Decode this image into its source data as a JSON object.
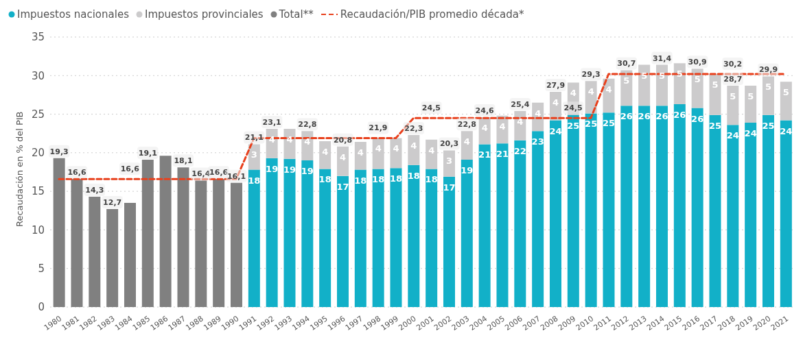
{
  "chart_data": {
    "type": "bar",
    "stacked": true,
    "ylabel": "Recaudación en % del PIB",
    "legend": "top left",
    "grid": "y",
    "ylim": [
      0,
      35
    ],
    "yticks": [
      0,
      5,
      10,
      15,
      20,
      25,
      30,
      35
    ],
    "categories": [
      "1980",
      "1981",
      "1982",
      "1983",
      "1984",
      "1985",
      "1986",
      "1987",
      "1988",
      "1989",
      "1990",
      "1991",
      "1992",
      "1993",
      "1994",
      "1995",
      "1996",
      "1997",
      "1998",
      "1999",
      "2000",
      "2001",
      "2002",
      "2003",
      "2004",
      "2005",
      "2006",
      "2007",
      "2008",
      "2009",
      "2010",
      "2011",
      "2012",
      "2013",
      "2014",
      "2015",
      "2016",
      "2017",
      "2018",
      "2019",
      "2020",
      "2021"
    ],
    "series": [
      {
        "name": "Impuestos nacionales",
        "color": "#12b0c8",
        "values": [
          null,
          null,
          null,
          null,
          null,
          null,
          null,
          null,
          null,
          null,
          null,
          17.8,
          19.3,
          19.2,
          19.0,
          17.9,
          17.0,
          17.8,
          17.9,
          18.0,
          18.4,
          17.9,
          16.9,
          19.1,
          21.1,
          21.2,
          21.6,
          22.8,
          24.2,
          24.9,
          25.1,
          25.2,
          26.1,
          26.1,
          26.1,
          26.3,
          25.8,
          24.9,
          23.6,
          23.9,
          24.9,
          24.2
        ],
        "value_labels": [
          null,
          null,
          null,
          null,
          null,
          null,
          null,
          null,
          null,
          null,
          null,
          "18",
          "19",
          "19",
          "19",
          "18",
          "17",
          "18",
          "18",
          "18",
          "18",
          "18",
          "17",
          "19",
          "21",
          "21",
          "22",
          "23",
          "24",
          "25",
          "25",
          "25",
          "26",
          "26",
          "26",
          "26",
          "26",
          "25",
          "24",
          "24",
          "25",
          "24"
        ]
      },
      {
        "name": "Impuestos provinciales",
        "color": "#cccbcc",
        "values": [
          null,
          null,
          null,
          null,
          null,
          null,
          null,
          null,
          null,
          null,
          null,
          3.3,
          3.8,
          3.9,
          3.8,
          3.6,
          3.8,
          3.6,
          4.0,
          3.9,
          3.9,
          3.8,
          3.4,
          3.7,
          3.5,
          3.6,
          3.8,
          3.7,
          3.7,
          4.2,
          4.2,
          4.4,
          4.6,
          5.3,
          5.3,
          5.3,
          5.1,
          5.3,
          5.1,
          4.8,
          5.0,
          5.0
        ],
        "value_labels": [
          null,
          null,
          null,
          null,
          null,
          null,
          null,
          null,
          null,
          null,
          null,
          "3",
          "4",
          "4",
          "4",
          "4",
          "4",
          "4",
          "4",
          "4",
          "4",
          "4",
          "3",
          "4",
          "4",
          "4",
          "4",
          "4",
          "4",
          "4",
          "4",
          "4",
          "5",
          "5",
          "5",
          "5",
          "5",
          "5",
          "5",
          "5",
          "5",
          "5"
        ]
      },
      {
        "name": "Total**",
        "color": "#808080",
        "values": [
          19.3,
          16.6,
          14.3,
          12.7,
          13.5,
          19.1,
          19.6,
          18.1,
          16.4,
          16.6,
          16.1,
          null,
          null,
          null,
          null,
          null,
          null,
          null,
          null,
          null,
          null,
          null,
          null,
          null,
          null,
          null,
          null,
          null,
          null,
          null,
          null,
          null,
          null,
          null,
          null,
          null,
          null,
          null,
          null,
          null,
          null,
          null
        ]
      },
      {
        "name": "Recaudación/PIB promedio década*",
        "type": "line",
        "color": "#e8401c",
        "line_style": "dashed",
        "marker": "none",
        "values": [
          16.6,
          16.6,
          16.6,
          16.6,
          16.6,
          16.6,
          16.6,
          16.6,
          16.6,
          16.6,
          16.6,
          21.9,
          21.9,
          21.9,
          21.9,
          21.9,
          21.9,
          21.9,
          21.9,
          21.9,
          24.5,
          24.5,
          24.5,
          24.5,
          24.5,
          24.5,
          24.5,
          24.5,
          24.5,
          24.5,
          24.5,
          30.2,
          30.2,
          30.2,
          30.2,
          30.2,
          30.2,
          30.2,
          30.2,
          30.2,
          30.2,
          30.2
        ]
      }
    ],
    "totals": [
      "19,3",
      "16,6",
      "14,3",
      "12,7",
      null,
      "19,1",
      null,
      "18,1",
      "16,4",
      "16,6",
      "16,1",
      "21,1",
      "23,1",
      null,
      "22,8",
      null,
      "20,8",
      null,
      null,
      null,
      "22,3",
      null,
      "20,3",
      "22,8",
      "24,6",
      null,
      "25,4",
      null,
      "27,9",
      null,
      "29,3",
      null,
      "30,7",
      null,
      "31,4",
      null,
      "30,9",
      null,
      "28,7",
      null,
      "29,9",
      null
    ],
    "annotations": [
      {
        "text": "16,6",
        "x": "1984",
        "y": 16.6
      },
      {
        "text": "21,9",
        "x": "1998",
        "y": 21.9
      },
      {
        "text": "24,5",
        "x": "2001",
        "y": 24.5
      },
      {
        "text": "24,5",
        "x": "2009",
        "y": 24.5
      },
      {
        "text": "30,2",
        "x": "2018",
        "y": 30.2
      }
    ]
  }
}
